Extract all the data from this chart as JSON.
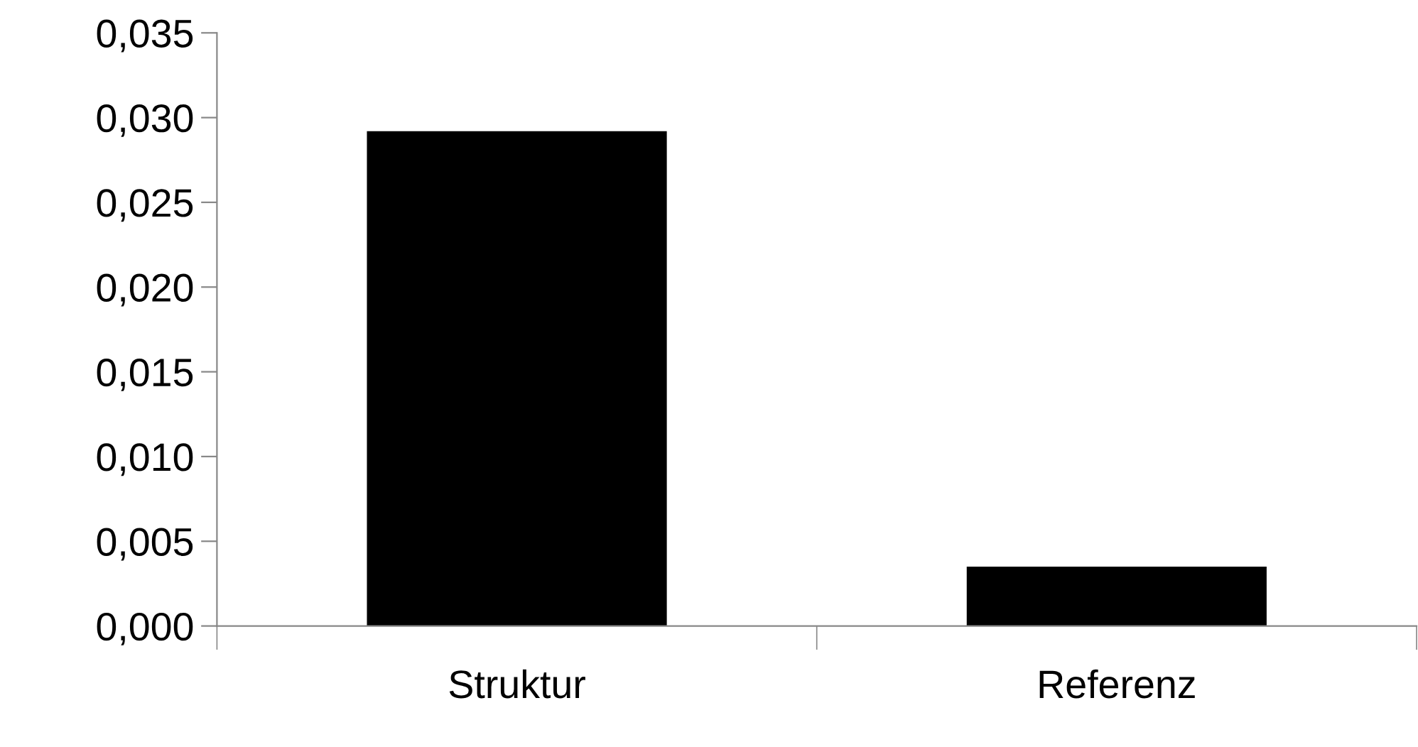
{
  "chart_data": {
    "type": "bar",
    "categories": [
      "Struktur",
      "Referenz"
    ],
    "values": [
      0.0292,
      0.0035
    ],
    "color": "#000000",
    "ylim": [
      0,
      0.035
    ],
    "yticks": [
      {
        "value": 0,
        "label": "0,000"
      },
      {
        "value": 0.005,
        "label": "0,005"
      },
      {
        "value": 0.01,
        "label": "0,010"
      },
      {
        "value": 0.015,
        "label": "0,015"
      },
      {
        "value": 0.02,
        "label": "0,020"
      },
      {
        "value": 0.025,
        "label": "0,025"
      },
      {
        "value": 0.03,
        "label": "0,030"
      },
      {
        "value": 0.035,
        "label": "0,035"
      }
    ],
    "grid": false,
    "legend": false
  }
}
